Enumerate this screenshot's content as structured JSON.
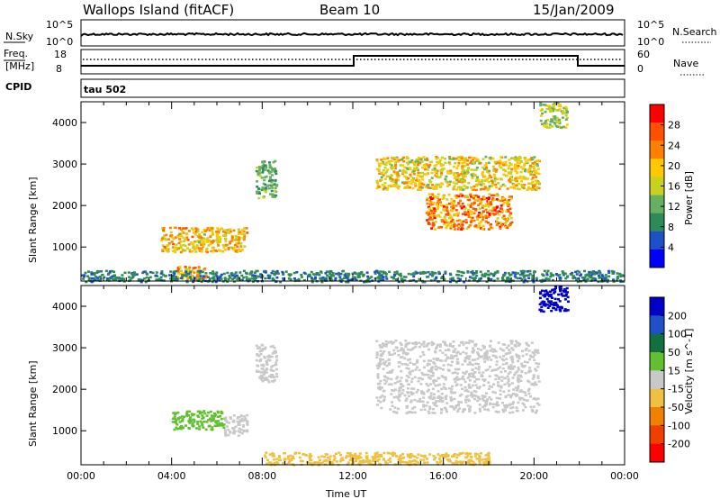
{
  "header": {
    "station": "Wallops Island (fitACF)",
    "beam": "Beam 10",
    "date": "15/Jan/2009"
  },
  "strip": {
    "nsky_label": "N.Sky",
    "nsearch_label": "N.Search",
    "freq_label": "Freq.",
    "freq_unit": "[MHz]",
    "nave_label": "Nave",
    "cpid_label": "CPID",
    "cpid_value": "tau 502",
    "nsky_left_ticks": [
      "10^5",
      "10^0"
    ],
    "nsky_right_ticks": [
      "10^5",
      "10^0"
    ],
    "freq_left_ticks": [
      "18",
      "8"
    ],
    "nave_right_ticks": [
      "60",
      "0"
    ]
  },
  "chart_data": [
    {
      "type": "heatmap",
      "name": "power-panel",
      "xlabel": "",
      "ylabel": "Slant Range [km]",
      "colorbar_label": "Power [dB]",
      "colorbar_ticks": [
        "28",
        "24",
        "20",
        "16",
        "12",
        "8",
        "4"
      ],
      "colorbar_colors": [
        "#0000ff",
        "#1e50c8",
        "#2e8b57",
        "#66b060",
        "#c8d020",
        "#ffc800",
        "#ff8000",
        "#ff5000",
        "#ff0000"
      ],
      "yticks": [
        "4000",
        "3000",
        "2000",
        "1000"
      ],
      "ylim": [
        180,
        4500
      ],
      "xlim": [
        0,
        24
      ],
      "regions": [
        {
          "t": [
            3.5,
            7.3
          ],
          "r": [
            900,
            1500
          ],
          "peak": 24,
          "note": "band near 1200 km"
        },
        {
          "t": [
            4.2,
            5.5
          ],
          "r": [
            250,
            550
          ],
          "peak": 26,
          "note": "low-range echo"
        },
        {
          "t": [
            7.7,
            8.6
          ],
          "r": [
            2200,
            3100
          ],
          "peak": 14
        },
        {
          "t": [
            13.0,
            20.2
          ],
          "r": [
            2400,
            3200
          ],
          "peak": 22,
          "note": "main band near 2800 km"
        },
        {
          "t": [
            15.2,
            19.0
          ],
          "r": [
            1450,
            2300
          ],
          "peak": 28,
          "note": "arc to 1500 km near 17 UT"
        },
        {
          "t": [
            20.2,
            21.5
          ],
          "r": [
            3900,
            4500
          ],
          "peak": 18
        },
        {
          "t": [
            0,
            24
          ],
          "r": [
            180,
            450
          ],
          "peak": 10,
          "note": "near-range scatter"
        }
      ]
    },
    {
      "type": "heatmap",
      "name": "velocity-panel",
      "xlabel": "Time UT",
      "ylabel": "Slant Range [km]",
      "colorbar_label": "Velocity [m s^-1]",
      "colorbar_ticks": [
        "200",
        "100",
        "50",
        "15",
        "-15",
        "-50",
        "-100",
        "-200"
      ],
      "colorbar_colors": [
        "#0000c8",
        "#2050c8",
        "#107040",
        "#60c030",
        "#c8c8c8",
        "#f0c040",
        "#f08000",
        "#f04000",
        "#ff0000"
      ],
      "yticks": [
        "4000",
        "3000",
        "2000",
        "1000"
      ],
      "xticks": [
        "00:00",
        "04:00",
        "08:00",
        "12:00",
        "16:00",
        "20:00",
        "00:00"
      ],
      "ylim": [
        180,
        4500
      ],
      "xlim": [
        0,
        24
      ],
      "regions": [
        {
          "t": [
            4.0,
            6.3
          ],
          "r": [
            1050,
            1500
          ],
          "v": 40,
          "note": "green block"
        },
        {
          "t": [
            6.3,
            7.3
          ],
          "r": [
            900,
            1400
          ],
          "v": 0
        },
        {
          "t": [
            7.7,
            8.6
          ],
          "r": [
            2200,
            3100
          ],
          "v": 0
        },
        {
          "t": [
            13.0,
            20.2
          ],
          "r": [
            1450,
            3200
          ],
          "v": 0,
          "note": "grey ground-scatter-like region"
        },
        {
          "t": [
            20.2,
            21.5
          ],
          "r": [
            3900,
            4500
          ],
          "v": 220,
          "note": "blue patch"
        },
        {
          "t": [
            8.0,
            18.0
          ],
          "r": [
            200,
            500
          ],
          "v": -40,
          "note": "orange near-range"
        }
      ]
    }
  ]
}
